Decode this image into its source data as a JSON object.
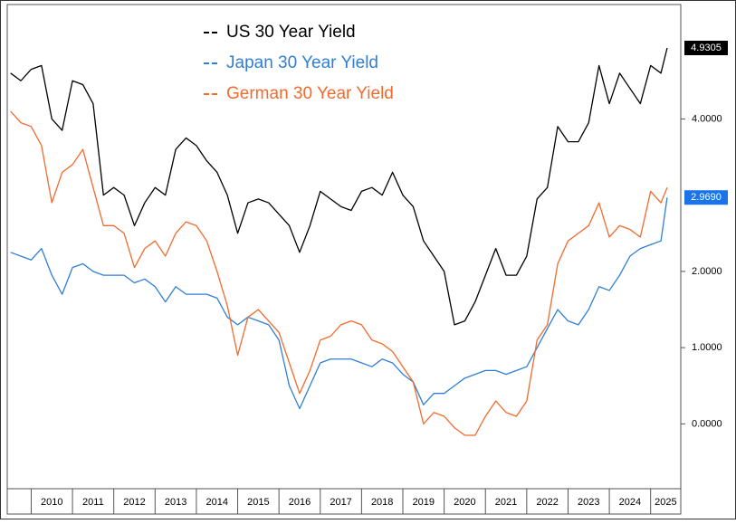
{
  "chart_data": {
    "type": "line",
    "x": [
      2009.5,
      2009.75,
      2010,
      2010.25,
      2010.5,
      2010.75,
      2011,
      2011.25,
      2011.5,
      2011.75,
      2012,
      2012.25,
      2012.5,
      2012.75,
      2013,
      2013.25,
      2013.5,
      2013.75,
      2014,
      2014.25,
      2014.5,
      2014.75,
      2015,
      2015.25,
      2015.5,
      2015.75,
      2016,
      2016.25,
      2016.5,
      2016.75,
      2017,
      2017.25,
      2017.5,
      2017.75,
      2018,
      2018.25,
      2018.5,
      2018.75,
      2019,
      2019.25,
      2019.5,
      2019.75,
      2020,
      2020.25,
      2020.5,
      2020.75,
      2021,
      2021.25,
      2021.5,
      2021.75,
      2022,
      2022.25,
      2022.5,
      2022.75,
      2023,
      2023.25,
      2023.5,
      2023.75,
      2024,
      2024.25,
      2024.5,
      2024.75,
      2025,
      2025.25,
      2025.4
    ],
    "series": [
      {
        "name": "US 30 Year Yield",
        "color": "#000000",
        "values": [
          4.6,
          4.5,
          4.65,
          4.7,
          4.0,
          3.85,
          4.5,
          4.45,
          4.2,
          3.0,
          3.1,
          3.0,
          2.6,
          2.9,
          3.1,
          3.0,
          3.6,
          3.75,
          3.65,
          3.45,
          3.3,
          3.0,
          2.5,
          2.9,
          2.95,
          2.9,
          2.75,
          2.6,
          2.25,
          2.6,
          3.05,
          2.95,
          2.85,
          2.8,
          3.05,
          3.1,
          3.0,
          3.3,
          3.0,
          2.85,
          2.4,
          2.2,
          2.0,
          1.3,
          1.35,
          1.6,
          1.95,
          2.3,
          1.95,
          1.95,
          2.2,
          2.95,
          3.1,
          3.9,
          3.7,
          3.7,
          3.95,
          4.7,
          4.2,
          4.6,
          4.4,
          4.2,
          4.7,
          4.6,
          4.9305
        ],
        "last_value": 4.9305
      },
      {
        "name": "Japan 30 Year Yield",
        "color": "#2f7fd6",
        "values": [
          2.25,
          2.2,
          2.15,
          2.3,
          1.95,
          1.7,
          2.05,
          2.1,
          2.0,
          1.95,
          1.95,
          1.95,
          1.85,
          1.9,
          1.8,
          1.6,
          1.8,
          1.7,
          1.7,
          1.7,
          1.65,
          1.4,
          1.3,
          1.4,
          1.35,
          1.3,
          1.1,
          0.5,
          0.2,
          0.5,
          0.8,
          0.85,
          0.85,
          0.85,
          0.8,
          0.75,
          0.85,
          0.8,
          0.65,
          0.55,
          0.25,
          0.4,
          0.4,
          0.5,
          0.6,
          0.65,
          0.7,
          0.7,
          0.65,
          0.7,
          0.75,
          1.0,
          1.25,
          1.5,
          1.35,
          1.3,
          1.5,
          1.8,
          1.75,
          1.95,
          2.2,
          2.3,
          2.35,
          2.4,
          2.969
        ],
        "last_value": {
          "value": 2.969,
          "label": "2.9690"
        }
      },
      {
        "name": "German 30 Year Yield",
        "color": "#f26a2e",
        "values": [
          4.1,
          3.95,
          3.9,
          3.65,
          2.9,
          3.3,
          3.4,
          3.6,
          3.1,
          2.6,
          2.6,
          2.5,
          2.05,
          2.3,
          2.4,
          2.2,
          2.5,
          2.65,
          2.6,
          2.4,
          2.0,
          1.55,
          0.9,
          1.4,
          1.5,
          1.35,
          1.2,
          0.8,
          0.4,
          0.7,
          1.1,
          1.15,
          1.3,
          1.35,
          1.3,
          1.1,
          1.05,
          0.95,
          0.75,
          0.55,
          0.0,
          0.15,
          0.1,
          -0.05,
          -0.15,
          -0.15,
          0.1,
          0.3,
          0.15,
          0.1,
          0.3,
          1.1,
          1.3,
          2.1,
          2.4,
          2.5,
          2.6,
          2.9,
          2.45,
          2.6,
          2.55,
          2.45,
          3.05,
          2.9,
          3.1
        ]
      }
    ],
    "xlim": [
      2009.42,
      2025.73
    ],
    "xticks": [
      2010,
      2011,
      2012,
      2013,
      2014,
      2015,
      2016,
      2017,
      2018,
      2019,
      2020,
      2021,
      2022,
      2023,
      2024,
      2025
    ],
    "ylim": [
      -0.85,
      5.5
    ],
    "yticks": [
      {
        "value": 0,
        "label": "0.0000"
      },
      {
        "value": 1,
        "label": "1.0000"
      },
      {
        "value": 2,
        "label": "2.0000"
      },
      {
        "value": 4,
        "label": "4.0000"
      }
    ]
  }
}
